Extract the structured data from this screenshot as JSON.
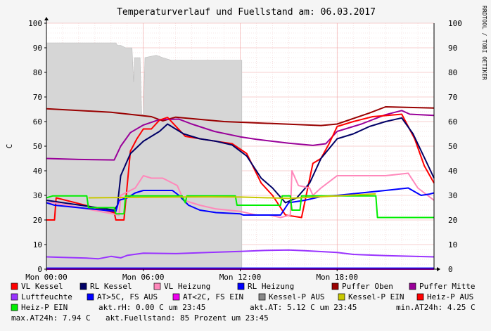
{
  "chart_data": {
    "type": "line",
    "title": "Temperaturverlauf und Fuellstand am: 06.03.2017",
    "ylabel": "C",
    "watermark": "RRDTOOL / TOBI OETIKER",
    "xlim": [
      0,
      24
    ],
    "ylim": [
      0,
      100
    ],
    "y_ticks": [
      0,
      10,
      20,
      30,
      40,
      50,
      60,
      70,
      80,
      90,
      100
    ],
    "x_ticks": [
      {
        "x": 0,
        "label": "Mon 00:00"
      },
      {
        "x": 6,
        "label": "Mon 06:00"
      },
      {
        "x": 12,
        "label": "Mon 12:00"
      },
      {
        "x": 18,
        "label": "Mon 18:00"
      }
    ],
    "grid": true,
    "legend_position": "bottom",
    "area": {
      "name": "Fuellstand",
      "color": "#d6d6d6",
      "points": [
        [
          0,
          92
        ],
        [
          4.3,
          92
        ],
        [
          4.4,
          91
        ],
        [
          4.6,
          91
        ],
        [
          4.9,
          90
        ],
        [
          5.3,
          90
        ],
        [
          5.4,
          76
        ],
        [
          5.45,
          86
        ],
        [
          5.8,
          86
        ],
        [
          5.9,
          63
        ],
        [
          6.0,
          63
        ],
        [
          6.1,
          86
        ],
        [
          6.8,
          87
        ],
        [
          7.2,
          86
        ],
        [
          7.7,
          85
        ],
        [
          8.6,
          85
        ],
        [
          12.1,
          85
        ],
        [
          12.1,
          0
        ]
      ]
    },
    "series": [
      {
        "name": "Puffer Oben",
        "color": "#990000",
        "points": [
          [
            0,
            65.2
          ],
          [
            4,
            63.8
          ],
          [
            6.5,
            62
          ],
          [
            7.2,
            60.3
          ],
          [
            8,
            61.8
          ],
          [
            11,
            60
          ],
          [
            17,
            58.4
          ],
          [
            18,
            59
          ],
          [
            20,
            63.5
          ],
          [
            21,
            66
          ],
          [
            24,
            65.5
          ]
        ]
      },
      {
        "name": "Puffer Mitte",
        "color": "#990099",
        "points": [
          [
            0,
            45
          ],
          [
            2,
            44.6
          ],
          [
            4.2,
            44.4
          ],
          [
            4.6,
            50
          ],
          [
            5.2,
            55.5
          ],
          [
            6,
            58.6
          ],
          [
            7,
            60.8
          ],
          [
            8.2,
            61
          ],
          [
            9,
            59
          ],
          [
            10.4,
            56
          ],
          [
            12,
            53.8
          ],
          [
            13,
            52.8
          ],
          [
            15,
            51.2
          ],
          [
            16.5,
            50.3
          ],
          [
            17.3,
            51
          ],
          [
            18,
            56
          ],
          [
            19.5,
            59
          ],
          [
            21,
            62.8
          ],
          [
            22,
            64.5
          ],
          [
            22.5,
            63
          ],
          [
            24,
            62.5
          ]
        ]
      },
      {
        "name": "VL Kessel",
        "color": "#ff0000",
        "points": [
          [
            0,
            20
          ],
          [
            0.5,
            20
          ],
          [
            0.6,
            29
          ],
          [
            4.2,
            23
          ],
          [
            4.3,
            20
          ],
          [
            4.8,
            20
          ],
          [
            5.2,
            48
          ],
          [
            5.6,
            53
          ],
          [
            6,
            57
          ],
          [
            6.5,
            57
          ],
          [
            7,
            60.6
          ],
          [
            7.5,
            61.7
          ],
          [
            8.6,
            54
          ],
          [
            10,
            52.5
          ],
          [
            11.5,
            51
          ],
          [
            12.4,
            47
          ],
          [
            13.3,
            35
          ],
          [
            14,
            30
          ],
          [
            14.6,
            24
          ],
          [
            14.8,
            22
          ],
          [
            15.8,
            21
          ],
          [
            16.5,
            43
          ],
          [
            17,
            45
          ],
          [
            17.5,
            51
          ],
          [
            18,
            58
          ],
          [
            19,
            60
          ],
          [
            20.2,
            62
          ],
          [
            22,
            63
          ],
          [
            22.8,
            53
          ],
          [
            23.4,
            42
          ],
          [
            24,
            35
          ]
        ]
      },
      {
        "name": "RL Kessel",
        "color": "#000066",
        "points": [
          [
            0,
            28
          ],
          [
            4.2,
            24
          ],
          [
            4.4,
            26
          ],
          [
            4.6,
            38
          ],
          [
            5.2,
            47
          ],
          [
            6,
            52
          ],
          [
            6.5,
            54
          ],
          [
            7,
            56
          ],
          [
            7.5,
            59
          ],
          [
            8.5,
            55
          ],
          [
            9.5,
            53
          ],
          [
            10.5,
            52
          ],
          [
            11.5,
            50.5
          ],
          [
            12.4,
            46
          ],
          [
            13.3,
            37
          ],
          [
            14,
            33
          ],
          [
            14.8,
            27
          ],
          [
            15.5,
            29
          ],
          [
            16.3,
            35
          ],
          [
            17,
            45
          ],
          [
            17.5,
            49
          ],
          [
            18,
            53
          ],
          [
            19,
            55
          ],
          [
            20,
            58
          ],
          [
            21,
            60
          ],
          [
            22,
            61.5
          ],
          [
            22.7,
            55
          ],
          [
            23.5,
            44
          ],
          [
            24,
            37
          ]
        ]
      },
      {
        "name": "VL Heizung",
        "color": "#ff88bb",
        "points": [
          [
            0,
            27
          ],
          [
            0.5,
            27
          ],
          [
            4.5,
            22
          ],
          [
            4.6,
            30
          ],
          [
            5.5,
            33
          ],
          [
            6.0,
            38
          ],
          [
            6.5,
            37
          ],
          [
            7.2,
            37
          ],
          [
            8.1,
            34
          ],
          [
            8.5,
            28
          ],
          [
            9.5,
            26
          ],
          [
            10.5,
            24.5
          ],
          [
            12,
            23.5
          ],
          [
            13,
            22
          ],
          [
            13.8,
            22
          ],
          [
            14.5,
            21
          ],
          [
            15.1,
            22
          ],
          [
            15.2,
            40
          ],
          [
            15.6,
            34
          ],
          [
            16.3,
            33
          ],
          [
            16.5,
            30
          ],
          [
            17.0,
            33
          ],
          [
            18,
            38
          ],
          [
            20,
            38
          ],
          [
            21,
            38
          ],
          [
            22.4,
            39
          ],
          [
            23,
            33
          ],
          [
            24,
            28
          ]
        ]
      },
      {
        "name": "RL Heizung",
        "color": "#0000ff",
        "points": [
          [
            0,
            27
          ],
          [
            0.5,
            26
          ],
          [
            4.3,
            23.5
          ],
          [
            4.5,
            28
          ],
          [
            5.0,
            29
          ],
          [
            5.5,
            31
          ],
          [
            6,
            32
          ],
          [
            7,
            32
          ],
          [
            7.8,
            32
          ],
          [
            8.2,
            30
          ],
          [
            8.8,
            26
          ],
          [
            9.5,
            24
          ],
          [
            10.5,
            23
          ],
          [
            12,
            22.5
          ],
          [
            12.2,
            22
          ],
          [
            14.5,
            22
          ],
          [
            15,
            27
          ],
          [
            16,
            28
          ],
          [
            17,
            29.5
          ],
          [
            18,
            30
          ],
          [
            19.5,
            31
          ],
          [
            21,
            32
          ],
          [
            22.4,
            33
          ],
          [
            23.2,
            30
          ],
          [
            23.7,
            30.5
          ],
          [
            24,
            31
          ]
        ]
      },
      {
        "name": "Heiz-P EIN",
        "color": "#00ee00",
        "points": [
          [
            0,
            29
          ],
          [
            0.4,
            29.8
          ],
          [
            2.5,
            29.8
          ],
          [
            2.6,
            25
          ],
          [
            4.2,
            25
          ],
          [
            4.3,
            22.5
          ],
          [
            4.8,
            22.5
          ],
          [
            4.9,
            29.8
          ],
          [
            8.4,
            29.8
          ],
          [
            8.6,
            27
          ],
          [
            8.7,
            29.8
          ],
          [
            11.7,
            29.8
          ],
          [
            11.8,
            26
          ],
          [
            14.5,
            26
          ],
          [
            14.6,
            29.8
          ],
          [
            15.1,
            29.8
          ],
          [
            15.2,
            24
          ],
          [
            15.7,
            24
          ],
          [
            15.8,
            29.8
          ],
          [
            20.4,
            29.8
          ],
          [
            20.5,
            21
          ],
          [
            24,
            21
          ]
        ]
      },
      {
        "name": "Kessel-P EIN",
        "color": "#c8c800",
        "points": [
          [
            2.6,
            29
          ],
          [
            6,
            29.2
          ],
          [
            10,
            29.4
          ],
          [
            12,
            29.3
          ],
          [
            15,
            28.8
          ],
          [
            20.4,
            30.6
          ]
        ]
      },
      {
        "name": "Luftfeuchte",
        "color": "#9933ff",
        "points": [
          [
            0,
            5
          ],
          [
            1,
            4.8
          ],
          [
            2.5,
            4.5
          ],
          [
            3.2,
            4.2
          ],
          [
            4,
            5.2
          ],
          [
            4.6,
            4.6
          ],
          [
            5,
            5.6
          ],
          [
            6,
            6.5
          ],
          [
            8,
            6.3
          ],
          [
            10,
            6.8
          ],
          [
            12,
            7.2
          ],
          [
            13.5,
            7.6
          ],
          [
            15,
            7.8
          ],
          [
            16,
            7.5
          ],
          [
            18,
            6.8
          ],
          [
            19,
            6
          ],
          [
            21,
            5.5
          ],
          [
            24,
            5
          ]
        ]
      },
      {
        "name": "AT>5C, FS AUS",
        "color": "#0000ff",
        "points": [
          [
            0,
            0.4
          ],
          [
            24,
            0.4
          ]
        ]
      },
      {
        "name": "AT<2C, FS EIN",
        "color": "#ee00ee",
        "points": [
          [
            0,
            0
          ],
          [
            24,
            0
          ]
        ]
      }
    ],
    "legend": [
      {
        "label": "VL Kessel",
        "color": "#ff0000"
      },
      {
        "label": "RL Kessel",
        "color": "#000066"
      },
      {
        "label": "VL Heizung",
        "color": "#ff88bb"
      },
      {
        "label": "RL Heizung",
        "color": "#0000ff"
      },
      {
        "label": "Puffer Oben",
        "color": "#990000"
      },
      {
        "label": "Puffer Mitte",
        "color": "#990099"
      },
      {
        "label": "Luftfeuchte",
        "color": "#9933ff"
      },
      {
        "label": "AT>5C, FS AUS",
        "color": "#0000ff"
      },
      {
        "label": "AT<2C, FS EIN",
        "color": "#ee00ee"
      },
      {
        "label": "Kessel-P AUS",
        "color": "#888888"
      },
      {
        "label": "Kessel-P EIN",
        "color": "#c8c800"
      },
      {
        "label": "Heiz-P AUS",
        "color": "#ff0000"
      },
      {
        "label": "Heiz-P EIN",
        "color": "#00ee00"
      }
    ],
    "stats": {
      "rh": "akt.rH: 0.00 C um 23:45",
      "at": "akt.AT: 5.12 C um 23:45",
      "min_at": "min.AT24h: 4.25 C",
      "max_at": "max.AT24h: 7.94 C",
      "fuellstand": "akt.Fuellstand:   85 Prozent um 23:45"
    }
  }
}
